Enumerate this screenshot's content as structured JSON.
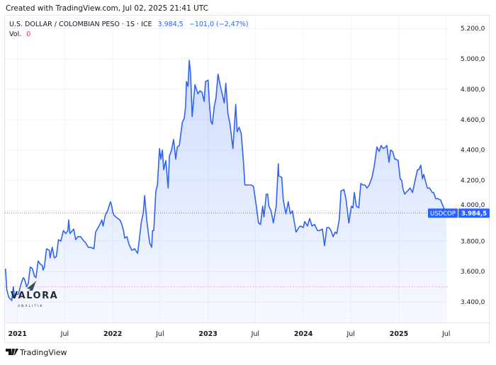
{
  "header": {
    "created_text": "Created with TradingView.com, Jul 02, 2025 21:41 UTC"
  },
  "legend": {
    "symbol": "U.S. DOLLAR / COLOMBIAN PESO · 1S · ICE",
    "last": "3.984,5",
    "change": "−101,0 (−2,47%)",
    "vol_label": "Vol.",
    "vol_value": "0"
  },
  "price_tag": {
    "ticker": "USDCOP",
    "price": "3.984,5"
  },
  "watermark": {
    "name": "VALORA",
    "sub": "ANALITIK"
  },
  "footer": {
    "brand": "TradingView"
  },
  "colors": {
    "line": "#2f63f0",
    "accent": "#2962ff",
    "down": "#f23645",
    "fill": "#2962ff"
  },
  "chart_data": {
    "type": "area",
    "title": "",
    "xlabel": "",
    "ylabel": "",
    "x_tick_labels": [
      "2021",
      "Jul",
      "2022",
      "Jul",
      "2023",
      "Jul",
      "2024",
      "Jul",
      "2025",
      "Jul"
    ],
    "y_tick_labels": [
      "3.400,0",
      "3.600,0",
      "3.800,0",
      "4.000,0",
      "4.200,0",
      "4.400,0",
      "4.600,0",
      "4.800,0",
      "5.000,0",
      "5.200,0"
    ],
    "y_ticks": [
      3400,
      3600,
      3800,
      4000,
      4200,
      4400,
      4600,
      4800,
      5000,
      5200
    ],
    "x_ticks": [
      "2021-01-01",
      "2021-07-01",
      "2022-01-01",
      "2022-07-01",
      "2023-01-01",
      "2023-07-01",
      "2024-01-01",
      "2024-07-01",
      "2025-01-01",
      "2025-07-01"
    ],
    "ylim": [
      3265,
      5285
    ],
    "xlim": [
      "2020-11-14",
      "2025-07-10"
    ],
    "grid": true,
    "axis_side": "right",
    "reference_line": 3500,
    "last_value": 3984.5,
    "series": [
      {
        "points": [
          [
            "2020-11-16",
            3620
          ],
          [
            "2020-11-21",
            3480
          ],
          [
            "2020-11-29",
            3430
          ],
          [
            "2020-12-10",
            3410
          ],
          [
            "2020-12-16",
            3500
          ],
          [
            "2020-12-21",
            3430
          ],
          [
            "2020-12-27",
            3450
          ],
          [
            "2021-01-04",
            3450
          ],
          [
            "2021-01-15",
            3520
          ],
          [
            "2021-01-23",
            3560
          ],
          [
            "2021-01-28",
            3550
          ],
          [
            "2021-02-05",
            3500
          ],
          [
            "2021-02-11",
            3520
          ],
          [
            "2021-02-19",
            3630
          ],
          [
            "2021-02-27",
            3620
          ],
          [
            "2021-03-07",
            3570
          ],
          [
            "2021-03-13",
            3560
          ],
          [
            "2021-03-21",
            3670
          ],
          [
            "2021-03-29",
            3650
          ],
          [
            "2021-04-06",
            3640
          ],
          [
            "2021-04-09",
            3610
          ],
          [
            "2021-04-14",
            3630
          ],
          [
            "2021-04-22",
            3750
          ],
          [
            "2021-05-03",
            3740
          ],
          [
            "2021-05-06",
            3690
          ],
          [
            "2021-05-14",
            3760
          ],
          [
            "2021-05-22",
            3690
          ],
          [
            "2021-05-30",
            3700
          ],
          [
            "2021-06-07",
            3810
          ],
          [
            "2021-06-16",
            3800
          ],
          [
            "2021-06-26",
            3870
          ],
          [
            "2021-07-05",
            3850
          ],
          [
            "2021-07-13",
            3870
          ],
          [
            "2021-07-16",
            3940
          ],
          [
            "2021-07-21",
            3850
          ],
          [
            "2021-08-04",
            3880
          ],
          [
            "2021-08-12",
            3810
          ],
          [
            "2021-08-20",
            3830
          ],
          [
            "2021-08-31",
            3830
          ],
          [
            "2021-09-08",
            3810
          ],
          [
            "2021-09-19",
            3790
          ],
          [
            "2021-09-29",
            3760
          ],
          [
            "2021-10-08",
            3760
          ],
          [
            "2021-10-21",
            3750
          ],
          [
            "2021-10-27",
            3860
          ],
          [
            "2021-11-06",
            3890
          ],
          [
            "2021-11-15",
            3920
          ],
          [
            "2021-11-20",
            3940
          ],
          [
            "2021-11-25",
            3900
          ],
          [
            "2021-12-03",
            3970
          ],
          [
            "2021-12-12",
            4000
          ],
          [
            "2021-12-23",
            4060
          ],
          [
            "2021-12-27",
            4040
          ],
          [
            "2022-01-01",
            3990
          ],
          [
            "2022-01-06",
            3970
          ],
          [
            "2022-01-20",
            3950
          ],
          [
            "2022-01-28",
            3940
          ],
          [
            "2022-02-03",
            3920
          ],
          [
            "2022-02-11",
            3870
          ],
          [
            "2022-02-16",
            3820
          ],
          [
            "2022-02-24",
            3830
          ],
          [
            "2022-03-04",
            3780
          ],
          [
            "2022-03-15",
            3740
          ],
          [
            "2022-03-26",
            3750
          ],
          [
            "2022-04-06",
            3720
          ],
          [
            "2022-04-14",
            3830
          ],
          [
            "2022-04-20",
            3920
          ],
          [
            "2022-04-28",
            3990
          ],
          [
            "2022-05-03",
            4100
          ],
          [
            "2022-05-11",
            3940
          ],
          [
            "2022-05-22",
            3790
          ],
          [
            "2022-05-30",
            3760
          ],
          [
            "2022-06-02",
            3870
          ],
          [
            "2022-06-07",
            3870
          ],
          [
            "2022-06-15",
            4130
          ],
          [
            "2022-06-21",
            4170
          ],
          [
            "2022-06-29",
            4410
          ],
          [
            "2022-07-04",
            4340
          ],
          [
            "2022-07-10",
            4400
          ],
          [
            "2022-07-15",
            4270
          ],
          [
            "2022-07-23",
            4330
          ],
          [
            "2022-08-01",
            4150
          ],
          [
            "2022-08-06",
            4360
          ],
          [
            "2022-08-14",
            4400
          ],
          [
            "2022-08-22",
            4470
          ],
          [
            "2022-08-30",
            4340
          ],
          [
            "2022-09-05",
            4420
          ],
          [
            "2022-09-13",
            4430
          ],
          [
            "2022-09-24",
            4580
          ],
          [
            "2022-10-02",
            4610
          ],
          [
            "2022-10-07",
            4690
          ],
          [
            "2022-10-10",
            4850
          ],
          [
            "2022-10-16",
            4820
          ],
          [
            "2022-10-21",
            4990
          ],
          [
            "2022-10-26",
            4900
          ],
          [
            "2022-11-01",
            4620
          ],
          [
            "2022-11-12",
            4830
          ],
          [
            "2022-11-23",
            4770
          ],
          [
            "2022-12-01",
            4790
          ],
          [
            "2022-12-09",
            4780
          ],
          [
            "2022-12-17",
            4720
          ],
          [
            "2022-12-22",
            4850
          ],
          [
            "2023-01-01",
            4860
          ],
          [
            "2023-01-06",
            4710
          ],
          [
            "2023-01-12",
            4590
          ],
          [
            "2023-01-17",
            4570
          ],
          [
            "2023-01-25",
            4690
          ],
          [
            "2023-01-31",
            4740
          ],
          [
            "2023-02-08",
            4900
          ],
          [
            "2023-02-16",
            4830
          ],
          [
            "2023-02-24",
            4770
          ],
          [
            "2023-03-04",
            4710
          ],
          [
            "2023-03-10",
            4840
          ],
          [
            "2023-03-18",
            4640
          ],
          [
            "2023-03-26",
            4570
          ],
          [
            "2023-04-06",
            4410
          ],
          [
            "2023-04-17",
            4700
          ],
          [
            "2023-04-22",
            4520
          ],
          [
            "2023-04-30",
            4550
          ],
          [
            "2023-05-08",
            4510
          ],
          [
            "2023-05-17",
            4310
          ],
          [
            "2023-05-22",
            4170
          ],
          [
            "2023-06-05",
            4170
          ],
          [
            "2023-06-16",
            4170
          ],
          [
            "2023-06-24",
            4160
          ],
          [
            "2023-07-05",
            4030
          ],
          [
            "2023-07-13",
            3920
          ],
          [
            "2023-07-21",
            3910
          ],
          [
            "2023-07-29",
            4030
          ],
          [
            "2023-08-03",
            3960
          ],
          [
            "2023-08-12",
            4110
          ],
          [
            "2023-08-17",
            4110
          ],
          [
            "2023-08-22",
            4030
          ],
          [
            "2023-08-30",
            4000
          ],
          [
            "2023-09-08",
            3920
          ],
          [
            "2023-09-19",
            4030
          ],
          [
            "2023-09-27",
            4310
          ],
          [
            "2023-09-29",
            4230
          ],
          [
            "2023-10-10",
            4220
          ],
          [
            "2023-10-16",
            4070
          ],
          [
            "2023-10-26",
            3980
          ],
          [
            "2023-11-04",
            4060
          ],
          [
            "2023-11-12",
            3980
          ],
          [
            "2023-11-20",
            4000
          ],
          [
            "2023-12-04",
            3860
          ],
          [
            "2023-12-15",
            3890
          ],
          [
            "2023-12-20",
            3900
          ],
          [
            "2024-01-01",
            3890
          ],
          [
            "2024-01-06",
            3930
          ],
          [
            "2024-01-17",
            3900
          ],
          [
            "2024-01-25",
            3950
          ],
          [
            "2024-02-03",
            3900
          ],
          [
            "2024-02-13",
            3910
          ],
          [
            "2024-02-24",
            3870
          ],
          [
            "2024-03-03",
            3870
          ],
          [
            "2024-03-14",
            3880
          ],
          [
            "2024-03-22",
            3770
          ],
          [
            "2024-03-31",
            3890
          ],
          [
            "2024-04-08",
            3890
          ],
          [
            "2024-04-16",
            3870
          ],
          [
            "2024-04-24",
            3830
          ],
          [
            "2024-05-02",
            3860
          ],
          [
            "2024-05-08",
            3850
          ],
          [
            "2024-05-18",
            3950
          ],
          [
            "2024-05-24",
            4130
          ],
          [
            "2024-06-04",
            4140
          ],
          [
            "2024-06-12",
            4080
          ],
          [
            "2024-06-23",
            3920
          ],
          [
            "2024-07-03",
            4030
          ],
          [
            "2024-07-09",
            4020
          ],
          [
            "2024-07-14",
            4120
          ],
          [
            "2024-07-22",
            4030
          ],
          [
            "2024-07-31",
            4020
          ],
          [
            "2024-08-08",
            4180
          ],
          [
            "2024-08-16",
            4170
          ],
          [
            "2024-08-24",
            4170
          ],
          [
            "2024-09-01",
            4150
          ],
          [
            "2024-09-09",
            4170
          ],
          [
            "2024-09-20",
            4220
          ],
          [
            "2024-09-28",
            4290
          ],
          [
            "2024-10-09",
            4420
          ],
          [
            "2024-10-17",
            4390
          ],
          [
            "2024-10-25",
            4430
          ],
          [
            "2024-11-02",
            4410
          ],
          [
            "2024-11-11",
            4420
          ],
          [
            "2024-11-16",
            4430
          ],
          [
            "2024-11-24",
            4320
          ],
          [
            "2024-11-30",
            4400
          ],
          [
            "2024-12-08",
            4390
          ],
          [
            "2024-12-16",
            4340
          ],
          [
            "2024-12-21",
            4340
          ],
          [
            "2024-12-29",
            4330
          ],
          [
            "2025-01-06",
            4210
          ],
          [
            "2025-01-12",
            4200
          ],
          [
            "2025-01-17",
            4140
          ],
          [
            "2025-01-23",
            4110
          ],
          [
            "2025-01-28",
            4120
          ],
          [
            "2025-02-03",
            4130
          ],
          [
            "2025-02-13",
            4150
          ],
          [
            "2025-02-22",
            4120
          ],
          [
            "2025-03-04",
            4200
          ],
          [
            "2025-03-13",
            4270
          ],
          [
            "2025-03-18",
            4270
          ],
          [
            "2025-03-26",
            4300
          ],
          [
            "2025-04-01",
            4210
          ],
          [
            "2025-04-06",
            4240
          ],
          [
            "2025-04-12",
            4200
          ],
          [
            "2025-04-20",
            4150
          ],
          [
            "2025-04-28",
            4150
          ],
          [
            "2025-05-09",
            4120
          ],
          [
            "2025-05-14",
            4120
          ],
          [
            "2025-05-22",
            4080
          ],
          [
            "2025-05-30",
            4080
          ],
          [
            "2025-06-10",
            4070
          ],
          [
            "2025-06-30",
            3984.5
          ]
        ]
      }
    ]
  }
}
